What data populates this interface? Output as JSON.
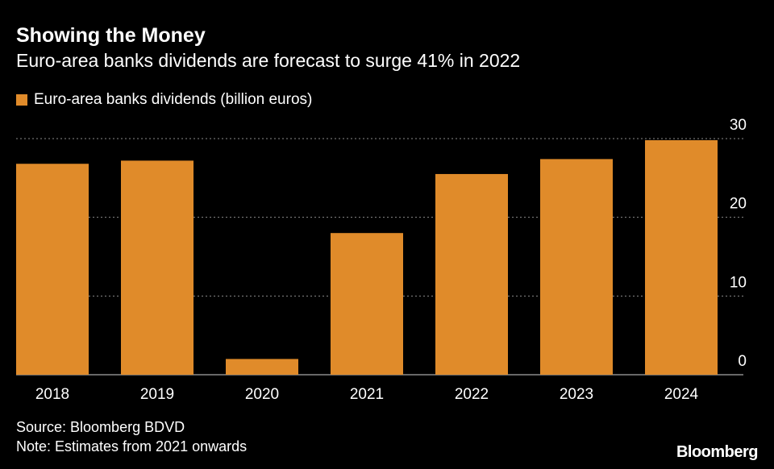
{
  "header": {
    "title": "Showing the Money",
    "subtitle": "Euro-area banks dividends are forecast to surge 41% in 2022"
  },
  "footer": {
    "source": "Source: Bloomberg BDVD",
    "note": "Note: Estimates from 2021 onwards",
    "brand": "Bloomberg"
  },
  "colors": {
    "background": "#000000",
    "bar": "#e08b2a",
    "grid": "#8a8a8a",
    "text": "#ffffff"
  },
  "chart_data": {
    "type": "bar",
    "categories": [
      "2018",
      "2019",
      "2020",
      "2021",
      "2022",
      "2023",
      "2024"
    ],
    "series": [
      {
        "name": "Euro-area banks dividends (billion euros)",
        "values": [
          26.8,
          27.2,
          2.0,
          18.0,
          25.5,
          27.4,
          29.8
        ]
      }
    ],
    "y_ticks": [
      0,
      10,
      20,
      30
    ],
    "ylim": [
      0,
      30
    ],
    "y_axis_side": "right",
    "grid": true,
    "legend_position": "top-left",
    "title": "Showing the Money",
    "subtitle": "Euro-area banks dividends are forecast to surge 41% in 2022",
    "xlabel": "",
    "ylabel": ""
  }
}
